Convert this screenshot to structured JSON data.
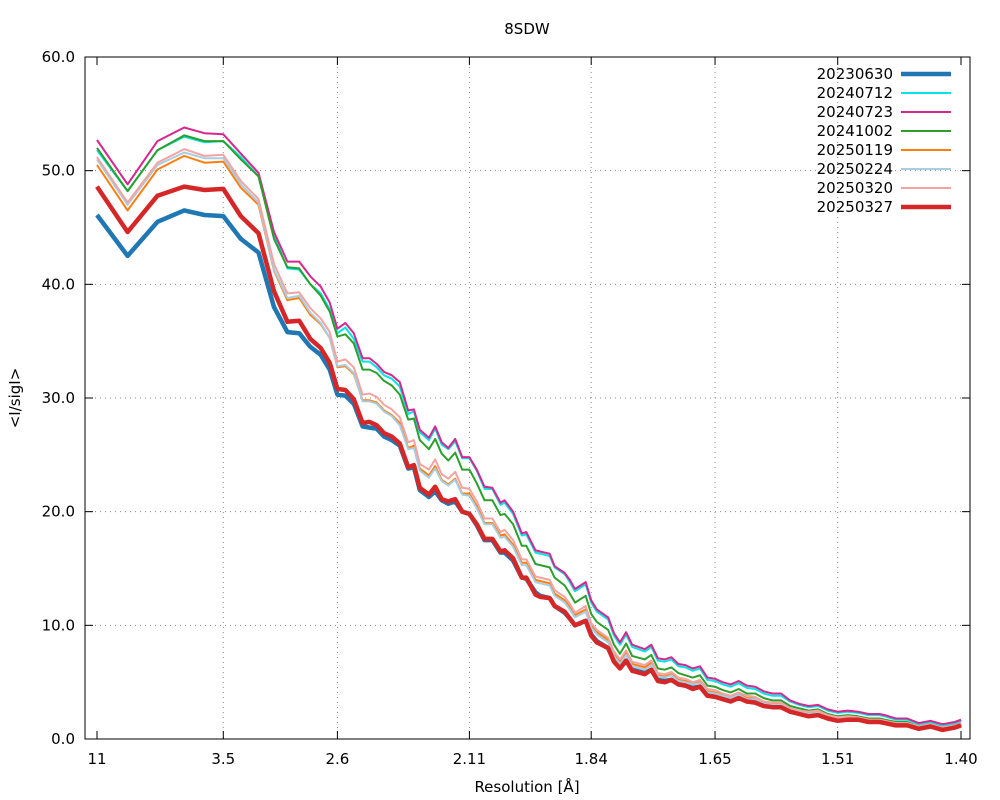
{
  "chart_data": {
    "type": "line",
    "title": "8SDW",
    "xlabel": "Resolution [Å]",
    "ylabel": "<I/sigI>",
    "x_scale": "reciprocal-squared",
    "x_ticks": [
      "11",
      "3.5",
      "2.6",
      "2.11",
      "1.84",
      "1.65",
      "1.51",
      "1.40"
    ],
    "y_ticks": [
      "0.0",
      "10.0",
      "20.0",
      "30.0",
      "40.0",
      "50.0",
      "60.0"
    ],
    "ylim": [
      0,
      60
    ],
    "grid": true,
    "legend_position": "top-right",
    "x_resolution": [
      11.0,
      6.2,
      4.8,
      4.12,
      3.76,
      3.5,
      3.3,
      3.13,
      3.0,
      2.9,
      2.82,
      2.75,
      2.69,
      2.64,
      2.6,
      2.56,
      2.52,
      2.48,
      2.45,
      2.42,
      2.39,
      2.36,
      2.33,
      2.3,
      2.28,
      2.26,
      2.23,
      2.21,
      2.19,
      2.17,
      2.15,
      2.13,
      2.11,
      2.09,
      2.07,
      2.05,
      2.03,
      2.02,
      2.0,
      1.98,
      1.97,
      1.95,
      1.94,
      1.92,
      1.91,
      1.89,
      1.88,
      1.87,
      1.85,
      1.84,
      1.83,
      1.81,
      1.8,
      1.79,
      1.78,
      1.77,
      1.75,
      1.74,
      1.73,
      1.72,
      1.71,
      1.7,
      1.69,
      1.68,
      1.67,
      1.66,
      1.65,
      1.64,
      1.63,
      1.62,
      1.61,
      1.6,
      1.59,
      1.58,
      1.57,
      1.56,
      1.55,
      1.54,
      1.53,
      1.52,
      1.51,
      1.5,
      1.49,
      1.48,
      1.47,
      1.465,
      1.455,
      1.445,
      1.435,
      1.425,
      1.415,
      1.405,
      1.4
    ],
    "series": [
      {
        "name": "20230630",
        "color": "#1f77b4",
        "width": 4.5,
        "values": [
          46.1,
          42.5,
          45.5,
          46.5,
          46.1,
          46.0,
          44.0,
          42.8,
          38.0,
          35.8,
          35.7,
          34.5,
          33.8,
          32.5,
          30.3,
          30.2,
          29.5,
          27.5,
          27.4,
          27.3,
          26.6,
          26.3,
          25.8,
          23.8,
          23.9,
          21.9,
          21.3,
          21.8,
          21.0,
          20.7,
          20.9,
          20.0,
          19.8,
          18.8,
          17.5,
          17.5,
          16.4,
          16.4,
          15.7,
          14.2,
          14.1,
          12.9,
          12.6,
          12.4,
          11.7,
          11.1,
          10.6,
          10.0,
          10.4,
          9.2,
          8.6,
          8.0,
          6.9,
          6.3,
          6.9,
          6.1,
          5.8,
          6.1,
          5.2,
          5.1,
          5.2,
          4.8,
          4.7,
          4.5,
          4.6,
          3.9,
          3.8,
          3.6,
          3.5,
          3.7,
          3.4,
          3.3,
          3.0,
          2.9,
          2.9,
          2.5,
          2.3,
          2.1,
          2.2,
          1.9,
          1.7,
          1.8,
          1.8,
          1.6,
          1.6,
          1.5,
          1.3,
          1.3,
          1.0,
          1.2,
          0.9,
          1.1,
          1.3
        ]
      },
      {
        "name": "20240712",
        "color": "#00e5e5",
        "width": 2,
        "values": [
          51.8,
          48.2,
          51.8,
          53.0,
          52.5,
          52.6,
          51.2,
          49.5,
          44.3,
          41.4,
          41.3,
          40.0,
          39.2,
          37.8,
          35.7,
          36.2,
          35.2,
          33.2,
          33.2,
          32.7,
          32.0,
          31.7,
          31.0,
          28.6,
          28.8,
          27.0,
          26.3,
          27.3,
          25.9,
          25.5,
          26.2,
          24.7,
          24.7,
          23.6,
          22.0,
          22.0,
          20.6,
          20.8,
          19.8,
          17.9,
          18.0,
          16.4,
          16.3,
          16.1,
          15.1,
          14.5,
          13.8,
          13.0,
          13.6,
          12.0,
          11.2,
          10.5,
          9.1,
          8.3,
          9.2,
          8.1,
          7.7,
          8.1,
          6.9,
          6.8,
          7.0,
          6.4,
          6.3,
          6.0,
          6.2,
          5.2,
          5.1,
          4.8,
          4.6,
          4.9,
          4.5,
          4.4,
          4.0,
          3.8,
          3.8,
          3.3,
          3.0,
          2.8,
          2.9,
          2.5,
          2.3,
          2.4,
          2.3,
          2.1,
          2.1,
          2.0,
          1.7,
          1.7,
          1.3,
          1.5,
          1.2,
          1.4,
          1.6
        ]
      },
      {
        "name": "20240723",
        "color": "#d6278f",
        "width": 2,
        "values": [
          52.7,
          48.8,
          52.6,
          53.8,
          53.3,
          53.2,
          51.5,
          49.8,
          44.6,
          42.0,
          42.0,
          40.7,
          39.8,
          38.4,
          36.1,
          36.6,
          35.7,
          33.5,
          33.5,
          33.0,
          32.3,
          32.0,
          31.4,
          28.9,
          29.0,
          27.2,
          26.5,
          27.5,
          26.1,
          25.6,
          26.4,
          24.8,
          24.8,
          23.7,
          22.2,
          22.1,
          20.8,
          21.0,
          20.0,
          18.1,
          18.2,
          16.6,
          16.5,
          16.3,
          15.2,
          14.6,
          14.0,
          13.2,
          13.8,
          12.2,
          11.4,
          10.7,
          9.3,
          8.5,
          9.4,
          8.3,
          7.9,
          8.3,
          7.1,
          7.0,
          7.2,
          6.6,
          6.5,
          6.2,
          6.4,
          5.4,
          5.3,
          5.0,
          4.8,
          5.1,
          4.7,
          4.6,
          4.2,
          4.0,
          4.0,
          3.4,
          3.1,
          2.9,
          3.0,
          2.6,
          2.4,
          2.5,
          2.4,
          2.2,
          2.2,
          2.1,
          1.8,
          1.8,
          1.4,
          1.6,
          1.3,
          1.5,
          1.7
        ]
      },
      {
        "name": "20241002",
        "color": "#2ca02c",
        "width": 2,
        "values": [
          52.0,
          48.2,
          51.8,
          53.1,
          52.6,
          52.6,
          51.0,
          49.5,
          44.0,
          41.5,
          41.4,
          40.0,
          39.0,
          37.6,
          35.4,
          35.6,
          34.8,
          32.5,
          32.5,
          32.2,
          31.5,
          31.1,
          30.3,
          28.1,
          28.2,
          26.3,
          25.5,
          26.4,
          25.1,
          24.5,
          25.2,
          23.7,
          23.7,
          22.5,
          21.0,
          21.0,
          19.7,
          19.8,
          18.9,
          17.0,
          17.0,
          15.4,
          15.3,
          15.1,
          14.2,
          13.5,
          12.8,
          12.0,
          12.6,
          11.0,
          10.3,
          9.6,
          8.3,
          7.5,
          8.4,
          7.3,
          7.0,
          7.4,
          6.2,
          6.1,
          6.3,
          5.8,
          5.6,
          5.4,
          5.6,
          4.7,
          4.6,
          4.3,
          4.1,
          4.4,
          4.0,
          4.0,
          3.6,
          3.4,
          3.4,
          2.9,
          2.7,
          2.5,
          2.6,
          2.2,
          2.0,
          2.1,
          2.0,
          1.8,
          1.8,
          1.7,
          1.5,
          1.5,
          1.1,
          1.3,
          1.0,
          1.2,
          1.4
        ]
      },
      {
        "name": "20250119",
        "color": "#ff7f0e",
        "width": 2,
        "values": [
          50.5,
          46.5,
          50.1,
          51.3,
          50.7,
          50.8,
          48.5,
          47.0,
          41.2,
          38.6,
          38.8,
          37.3,
          36.5,
          35.3,
          32.7,
          32.8,
          32.1,
          29.8,
          29.8,
          29.6,
          28.9,
          28.5,
          27.8,
          25.6,
          25.8,
          23.8,
          23.2,
          24.0,
          22.8,
          22.4,
          22.9,
          21.6,
          21.6,
          20.5,
          19.0,
          19.0,
          17.9,
          18.0,
          17.1,
          15.5,
          15.5,
          14.0,
          13.9,
          13.7,
          12.8,
          12.2,
          11.6,
          10.9,
          11.4,
          10.0,
          9.4,
          8.7,
          7.5,
          6.8,
          7.6,
          6.6,
          6.3,
          6.7,
          5.6,
          5.5,
          5.7,
          5.2,
          5.1,
          4.9,
          5.0,
          4.2,
          4.1,
          3.9,
          3.7,
          4.0,
          3.6,
          3.6,
          3.2,
          3.1,
          3.1,
          2.6,
          2.4,
          2.3,
          2.4,
          2.0,
          1.8,
          1.9,
          1.9,
          1.7,
          1.7,
          1.6,
          1.4,
          1.4,
          1.0,
          1.2,
          0.9,
          1.1,
          1.3
        ]
      },
      {
        "name": "20250224",
        "color": "#a6cee3",
        "width": 2,
        "values": [
          51.0,
          47.0,
          50.5,
          51.6,
          51.1,
          51.1,
          48.8,
          47.2,
          41.3,
          38.8,
          39.0,
          37.5,
          36.6,
          35.3,
          32.8,
          32.9,
          32.2,
          29.7,
          29.7,
          29.5,
          28.8,
          28.4,
          27.6,
          25.5,
          25.6,
          23.6,
          23.0,
          23.8,
          22.7,
          22.3,
          22.8,
          21.5,
          21.4,
          20.3,
          18.9,
          18.9,
          17.7,
          17.8,
          16.9,
          15.3,
          15.3,
          13.8,
          13.7,
          13.5,
          12.6,
          12.0,
          11.4,
          10.7,
          11.2,
          9.8,
          9.2,
          8.5,
          7.3,
          6.6,
          7.4,
          6.4,
          6.1,
          6.5,
          5.5,
          5.4,
          5.6,
          5.1,
          5.0,
          4.8,
          4.9,
          4.1,
          4.0,
          3.8,
          3.6,
          3.9,
          3.5,
          3.5,
          3.1,
          3.0,
          3.0,
          2.6,
          2.4,
          2.2,
          2.3,
          1.9,
          1.8,
          1.9,
          1.8,
          1.6,
          1.6,
          1.5,
          1.3,
          1.3,
          1.0,
          1.2,
          0.9,
          1.1,
          1.2
        ]
      },
      {
        "name": "20250320",
        "color": "#f4a3a3",
        "width": 2,
        "values": [
          51.2,
          47.2,
          50.7,
          51.9,
          51.3,
          51.4,
          49.1,
          47.5,
          41.8,
          39.2,
          39.3,
          37.9,
          37.0,
          35.8,
          33.2,
          33.4,
          32.7,
          30.3,
          30.4,
          30.1,
          29.4,
          29.0,
          28.3,
          26.1,
          26.3,
          24.2,
          23.7,
          24.6,
          23.3,
          22.9,
          23.5,
          22.1,
          22.0,
          20.9,
          19.4,
          19.4,
          18.2,
          18.4,
          17.5,
          15.8,
          15.8,
          14.3,
          14.2,
          14.0,
          13.1,
          12.5,
          11.9,
          11.1,
          11.7,
          10.2,
          9.6,
          8.9,
          7.7,
          7.0,
          7.8,
          6.8,
          6.5,
          6.9,
          5.8,
          5.7,
          5.9,
          5.4,
          5.3,
          5.0,
          5.2,
          4.4,
          4.3,
          4.0,
          3.8,
          4.1,
          3.8,
          3.7,
          3.3,
          3.2,
          3.2,
          2.7,
          2.5,
          2.4,
          2.5,
          2.1,
          1.9,
          2.0,
          1.9,
          1.7,
          1.7,
          1.6,
          1.4,
          1.4,
          1.1,
          1.3,
          1.0,
          1.2,
          1.4
        ]
      },
      {
        "name": "20250327",
        "color": "#d62728",
        "width": 4.5,
        "values": [
          48.6,
          44.6,
          47.8,
          48.6,
          48.3,
          48.4,
          46.0,
          44.5,
          39.4,
          36.7,
          36.8,
          35.2,
          34.4,
          33.1,
          30.8,
          30.7,
          29.9,
          27.8,
          27.9,
          27.6,
          26.9,
          26.6,
          26.0,
          23.9,
          24.1,
          22.1,
          21.5,
          22.2,
          21.1,
          20.9,
          21.1,
          20.0,
          19.8,
          18.9,
          17.6,
          17.6,
          16.5,
          16.6,
          15.9,
          14.2,
          14.2,
          12.7,
          12.5,
          12.4,
          11.7,
          11.2,
          10.6,
          10.0,
          10.4,
          9.1,
          8.5,
          8.0,
          6.8,
          6.2,
          6.9,
          6.0,
          5.7,
          6.1,
          5.1,
          5.0,
          5.2,
          4.8,
          4.7,
          4.4,
          4.6,
          3.8,
          3.7,
          3.5,
          3.3,
          3.6,
          3.3,
          3.2,
          2.9,
          2.8,
          2.8,
          2.4,
          2.2,
          2.0,
          2.1,
          1.8,
          1.6,
          1.7,
          1.7,
          1.5,
          1.5,
          1.4,
          1.2,
          1.2,
          0.9,
          1.1,
          0.8,
          1.0,
          1.2
        ]
      }
    ]
  }
}
